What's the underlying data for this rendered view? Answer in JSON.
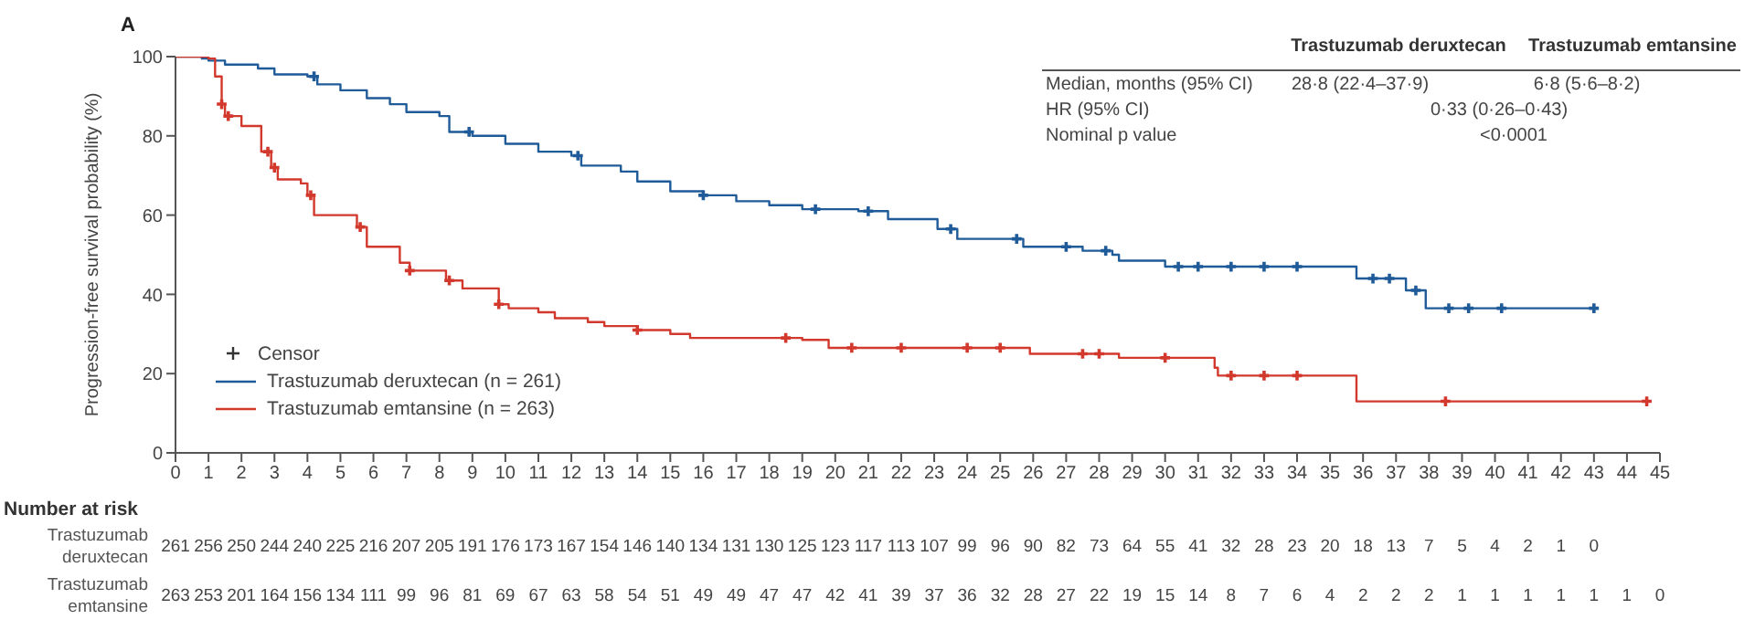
{
  "chart_data": {
    "type": "step",
    "title": "A",
    "ylabel": "Progression-free survival probability (%)",
    "xlim": [
      0,
      45
    ],
    "xticks": [
      0,
      1,
      2,
      3,
      4,
      5,
      6,
      7,
      8,
      9,
      10,
      11,
      12,
      13,
      14,
      15,
      16,
      17,
      18,
      19,
      20,
      21,
      22,
      23,
      24,
      25,
      26,
      27,
      28,
      29,
      30,
      31,
      32,
      33,
      34,
      35,
      36,
      37,
      38,
      39,
      40,
      41,
      42,
      43,
      44,
      45
    ],
    "ylim": [
      0,
      100
    ],
    "yticks": [
      0,
      20,
      40,
      60,
      80,
      100
    ],
    "grid": false,
    "legend": "bottom left",
    "series": [
      {
        "name": "Trastuzumab deruxtecan (n = 261)",
        "color": "#1f5b99",
        "x": [
          0,
          0.8,
          1,
          1.5,
          2.5,
          3,
          4,
          4.3,
          5,
          5.8,
          6.5,
          7,
          8,
          8.3,
          9,
          10,
          11,
          12,
          12.3,
          13.5,
          14,
          15,
          16,
          17,
          18,
          19,
          20.7,
          21.6,
          23.1,
          23.7,
          25.7,
          27.5,
          28.4,
          28.6,
          30,
          35.8,
          37.3,
          37.9,
          43
        ],
        "values": [
          100,
          99.5,
          99,
          98,
          97,
          95.5,
          95,
          93,
          91.5,
          89.5,
          88,
          86,
          85,
          81,
          80,
          78,
          76,
          75,
          72.5,
          71,
          68.5,
          66,
          65,
          63.5,
          62.5,
          61.5,
          61,
          59,
          56.5,
          54,
          52,
          51,
          50,
          48.5,
          47,
          44,
          41,
          36.5,
          36.5
        ]
      },
      {
        "name": "Trastuzumab emtansine (n = 263)",
        "color": "#d2382c",
        "x": [
          0,
          1,
          1.2,
          1.4,
          1.5,
          2,
          2.6,
          2.9,
          3.1,
          3.8,
          4,
          4.2,
          5.5,
          5.8,
          6.8,
          7.1,
          8.2,
          8.7,
          9.8,
          10.1,
          11,
          11.5,
          12.5,
          13,
          14,
          15,
          15.6,
          19,
          19.8,
          25.9,
          28.6,
          31.5,
          31.6,
          35.8,
          44.6
        ],
        "values": [
          100,
          99.5,
          95,
          88,
          85,
          82.5,
          76,
          72,
          69,
          68,
          65,
          60,
          57,
          52,
          48,
          46,
          43.5,
          41.5,
          37.5,
          36.5,
          35.5,
          34,
          33,
          32,
          31,
          30,
          29,
          28.5,
          26.5,
          25,
          24,
          21.5,
          19.5,
          13,
          13
        ]
      },
      {
        "type": "scatter",
        "marker": "cross",
        "color": "#1f5b99",
        "x": [
          4.2,
          8.9,
          12.2,
          16,
          19.4,
          21,
          23.5,
          25.5,
          27,
          28.2,
          30.4,
          31,
          32,
          33,
          34,
          36.3,
          36.8,
          37.6,
          38.6,
          39.2,
          40.2,
          43
        ],
        "values": [
          95,
          81,
          75,
          65,
          61.5,
          61,
          56.5,
          54,
          52,
          51,
          47,
          47,
          47,
          47,
          47,
          44,
          44,
          41,
          36.5,
          36.5,
          36.5,
          36.5
        ]
      },
      {
        "type": "scatter",
        "marker": "cross",
        "color": "#d2382c",
        "x": [
          1.4,
          1.6,
          2.8,
          3,
          4.1,
          5.6,
          7.1,
          8.3,
          9.8,
          14,
          18.5,
          20.5,
          22,
          24,
          25,
          27.5,
          28,
          30,
          32,
          33,
          34,
          38.5,
          44.6
        ],
        "values": [
          88,
          85,
          76,
          72,
          65,
          57,
          46,
          43.5,
          37.5,
          31,
          29,
          26.5,
          26.5,
          26.5,
          26.5,
          25,
          25,
          24,
          19.5,
          19.5,
          19.5,
          13,
          13
        ]
      }
    ],
    "annotations": [
      "Trastuzumab deruxtecan",
      "Trastuzumab emtansine",
      "Median, months (95% CI)",
      "28·8 (22·4–37·9)",
      "6·8 (5·6–8·2)",
      "HR (95% CI)",
      "0·33 (0·26–0·43)",
      "Nominal p value",
      "<0·0001",
      "Censor",
      "Number at risk",
      "Trastuzumab deruxtecan",
      "261 256 250 244 240 225 216 207 205 191 176 173 167 154 146 140 134 131 130 125 123 117 113 107 99 96 90 82 73 64 55 41 32 28 23 20 18 13 7 5 4 2 1 0",
      "Trastuzumab emtansine",
      "263 253 201 164 156 134 111 99 96 81 69 67 63 58 54 51 49 49 47 47 42 41 39 37 36 32 28 27 22 19 15 14 8 7 6 4 2 2 2 1 1 1 1 1 1 0"
    ]
  }
}
